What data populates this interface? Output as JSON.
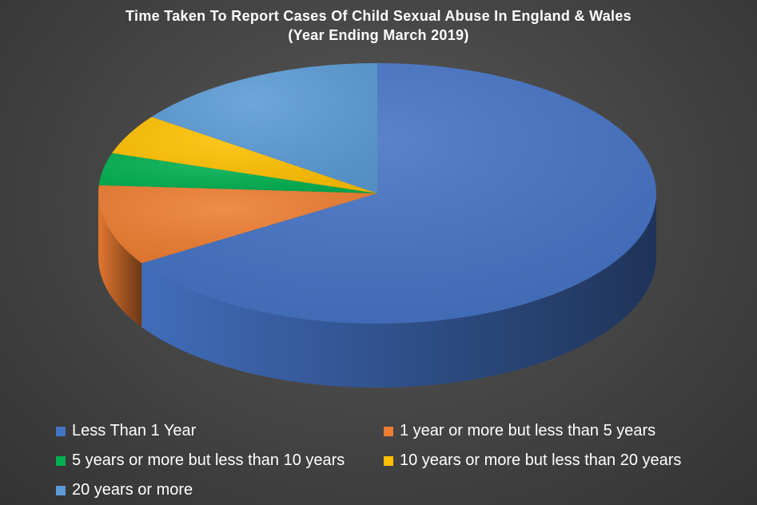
{
  "chart_data": {
    "type": "pie",
    "title": "Time Taken To Report Cases Of Child Sexual Abuse In England & Wales",
    "subtitle": "(Year Ending March 2019)",
    "three_d": true,
    "legend_position": "bottom",
    "categories": [
      "Less Than 1 Year",
      "1 year or more but less than 5 years",
      "5 years or more but less than 10 years",
      "10 years or more but less than 20 years",
      "20 years or more"
    ],
    "values": [
      66,
      10,
      4,
      5,
      15
    ],
    "colors": [
      "#4472C4",
      "#ED7D31",
      "#00B050",
      "#FFC000",
      "#5B9BD5"
    ]
  }
}
